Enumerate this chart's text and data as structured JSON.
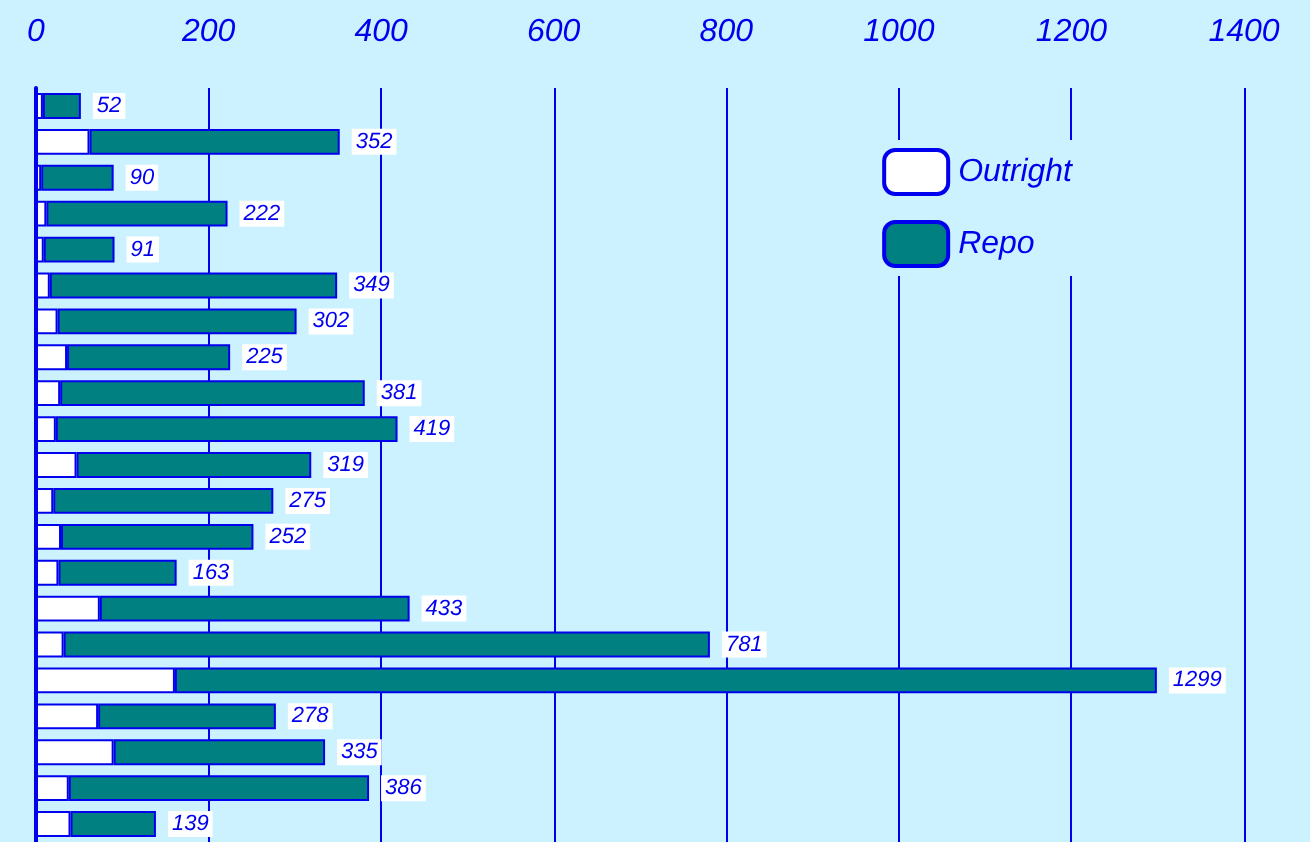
{
  "chart_data": {
    "type": "bar",
    "orientation": "horizontal",
    "stacked": true,
    "categories": [
      null,
      null,
      null,
      null,
      null,
      null,
      null,
      null,
      null,
      null,
      null,
      null,
      null,
      null,
      null,
      null,
      null,
      null,
      null,
      null,
      null
    ],
    "series": [
      {
        "name": "Outright",
        "color": "#ffffff",
        "values": [
          8,
          62,
          6,
          12,
          9,
          16,
          25,
          36,
          28,
          23,
          47,
          20,
          29,
          26,
          74,
          32,
          161,
          72,
          90,
          38,
          40
        ]
      },
      {
        "name": "Repo",
        "color": "#008080",
        "values": [
          44,
          290,
          84,
          210,
          82,
          333,
          277,
          189,
          353,
          396,
          272,
          255,
          223,
          137,
          359,
          749,
          1138,
          206,
          245,
          348,
          99
        ]
      }
    ],
    "totals": [
      "52",
      "352",
      "90",
      "222",
      "91",
      "349",
      "302",
      "225",
      "381",
      "419",
      "319",
      "275",
      "252",
      "163",
      "433",
      "781",
      "1299",
      "278",
      "335",
      "386",
      "139"
    ],
    "xlim": [
      0,
      1400
    ],
    "xticks": [
      0,
      200,
      400,
      600,
      800,
      1000,
      1200,
      1400
    ],
    "grid": "x",
    "legend": "top right",
    "tick_labels": "x"
  }
}
